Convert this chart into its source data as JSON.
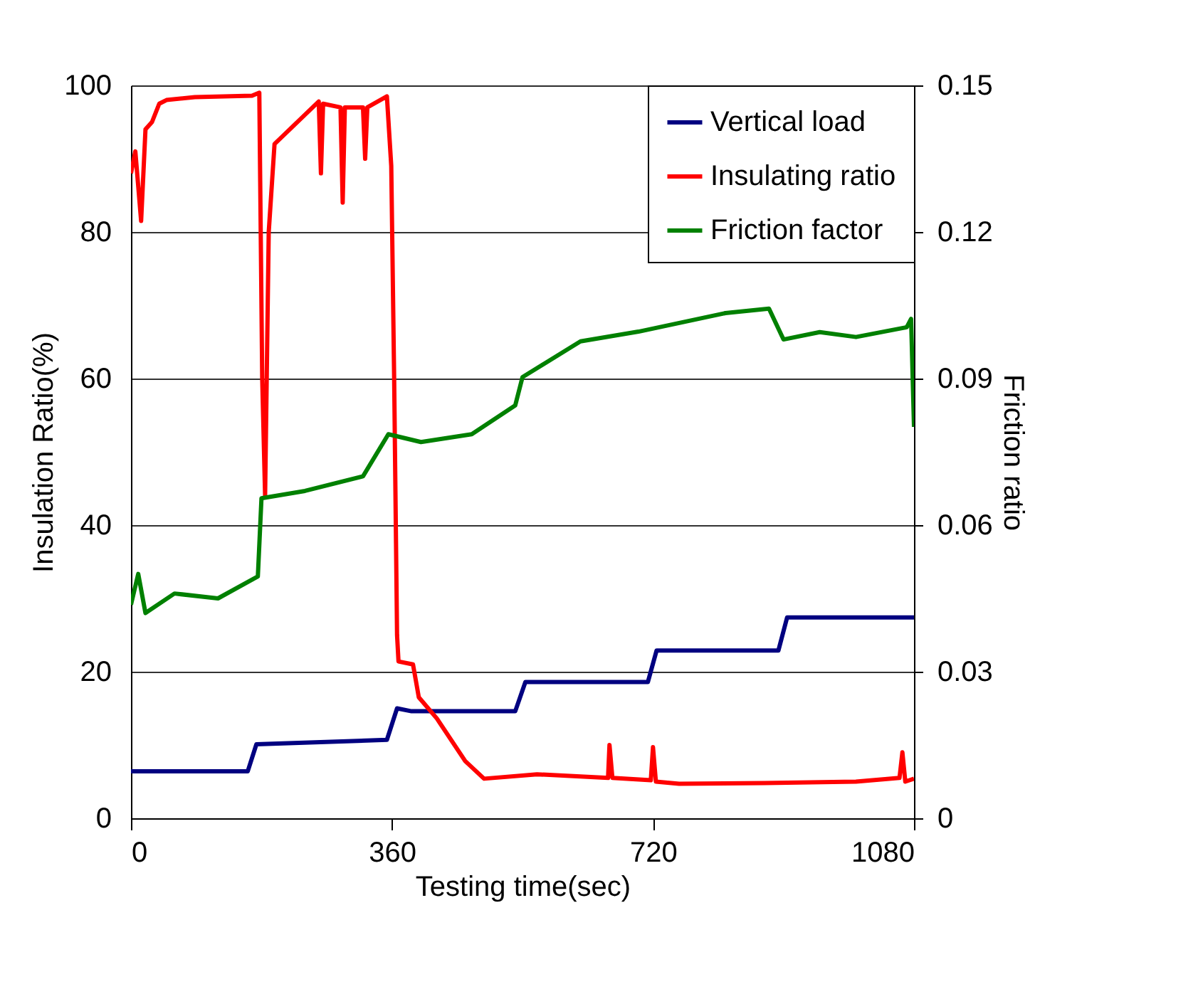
{
  "chart_data": {
    "type": "line",
    "xlabel": "Testing time(sec)",
    "ylabel": "Insulation Ratio(%)",
    "y2label": "Friction ratio",
    "xlim": [
      0,
      1080
    ],
    "xticks": [
      0,
      360,
      720,
      1080
    ],
    "ylim": [
      0,
      100
    ],
    "yticks": [
      0,
      20,
      40,
      60,
      80,
      100
    ],
    "y2lim": [
      0,
      0.15
    ],
    "y2ticks": [
      0,
      0.03,
      0.06,
      0.09,
      0.12,
      0.15
    ],
    "grid": "y",
    "legend": "top right",
    "line_style": "solid",
    "marker": "none",
    "series": [
      {
        "name": "Vertical load",
        "color": "#000080",
        "x": [
          0,
          161,
          173,
          353,
          367,
          387,
          530,
          544,
          713,
          725,
          893,
          905,
          1080
        ],
        "values": [
          6.4,
          6.4,
          10.1,
          10.7,
          15,
          14.6,
          14.6,
          18.6,
          18.6,
          22.9,
          22.9,
          27.4,
          27.4
        ]
      },
      {
        "name": "Insulating ratio",
        "color": "#ff0000",
        "x": [
          0,
          6,
          14,
          20,
          29,
          39,
          49,
          88,
          167,
          177,
          181,
          185,
          190,
          198,
          259,
          262,
          265,
          289,
          292,
          295,
          320,
          323,
          326,
          353,
          359,
          363,
          367,
          369,
          389,
          397,
          422,
          461,
          487,
          560,
          658,
          660,
          664,
          717,
          720,
          724,
          756,
          874,
          1000,
          1060,
          1064,
          1068,
          1080
        ],
        "values": [
          88,
          91,
          81.5,
          94,
          95,
          97.5,
          98,
          98.4,
          98.6,
          99,
          60,
          44,
          80,
          92,
          97.8,
          88,
          97.5,
          97,
          84,
          97,
          97,
          90,
          97,
          98.5,
          89,
          60,
          25,
          21.4,
          21,
          16.5,
          13.6,
          7.8,
          5.4,
          6,
          5.5,
          10,
          5.5,
          5.2,
          9.7,
          5,
          4.7,
          4.8,
          5,
          5.5,
          9,
          5,
          5.4
        ]
      },
      {
        "name": "Friction factor",
        "color": "#008000",
        "axis": "y2",
        "x": [
          0,
          10,
          20,
          60,
          120,
          175,
          180,
          240,
          320,
          355,
          400,
          470,
          530,
          540,
          620,
          700,
          820,
          880,
          900,
          950,
          1000,
          1070,
          1076,
          1080
        ],
        "values": [
          0.0437,
          0.05,
          0.042,
          0.046,
          0.045,
          0.0495,
          0.0655,
          0.067,
          0.07,
          0.0786,
          0.077,
          0.0786,
          0.0845,
          0.0903,
          0.0976,
          0.0996,
          0.1034,
          0.1043,
          0.098,
          0.0995,
          0.0985,
          0.1005,
          0.1022,
          0.0801
        ]
      }
    ]
  }
}
